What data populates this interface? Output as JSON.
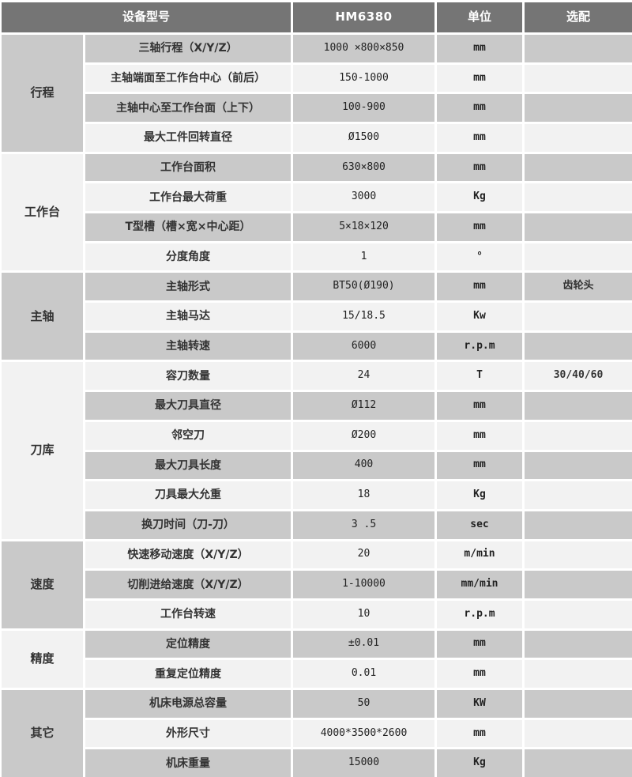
{
  "header": {
    "device_label": "设备型号",
    "model": "HM6380",
    "unit_label": "单位",
    "optional_label": "选配"
  },
  "colors": {
    "header_bg": "#757575",
    "header_text": "#ffffff",
    "row_gray": "#c9c9c9",
    "row_light": "#f2f2f2",
    "divider": "#ffffff",
    "text": "#333333"
  },
  "sections": [
    {
      "category": "行程",
      "rows": [
        {
          "param": "三轴行程（X/Y/Z）",
          "value": "1000 ×800×850",
          "unit": "mm",
          "optional": ""
        },
        {
          "param": "主轴端面至工作台中心（前后）",
          "value": "150-1000",
          "unit": "mm",
          "optional": ""
        },
        {
          "param": "主轴中心至工作台面（上下）",
          "value": "100-900",
          "unit": "mm",
          "optional": ""
        },
        {
          "param": "最大工件回转直径",
          "value": "Ø1500",
          "unit": "mm",
          "optional": ""
        }
      ]
    },
    {
      "category": "工作台",
      "rows": [
        {
          "param": "工作台面积",
          "value": "630×800",
          "unit": "mm",
          "optional": ""
        },
        {
          "param": "工作台最大荷重",
          "value": "3000",
          "unit": "Kg",
          "optional": ""
        },
        {
          "param": "T型槽（槽×宽×中心距）",
          "value": "5×18×120",
          "unit": "mm",
          "optional": ""
        },
        {
          "param": "分度角度",
          "value": "1",
          "unit": "°",
          "optional": ""
        }
      ]
    },
    {
      "category": "主轴",
      "rows": [
        {
          "param": "主轴形式",
          "value": "BT50(Ø190)",
          "unit": "mm",
          "optional": "齿轮头"
        },
        {
          "param": "主轴马达",
          "value": "15/18.5",
          "unit": "Kw",
          "optional": ""
        },
        {
          "param": "主轴转速",
          "value": "6000",
          "unit": "r.p.m",
          "optional": ""
        }
      ]
    },
    {
      "category": "刀库",
      "rows": [
        {
          "param": "容刀数量",
          "value": "24",
          "unit": "T",
          "optional": "30/40/60"
        },
        {
          "param": "最大刀具直径",
          "value": "Ø112",
          "unit": "mm",
          "optional": ""
        },
        {
          "param": "邻空刀",
          "value": "Ø200",
          "unit": "mm",
          "optional": ""
        },
        {
          "param": "最大刀具长度",
          "value": "400",
          "unit": "mm",
          "optional": ""
        },
        {
          "param": "刀具最大允重",
          "value": "18",
          "unit": "Kg",
          "optional": ""
        },
        {
          "param": "换刀时间（刀-刀）",
          "value": "3 .5",
          "unit": "sec",
          "optional": ""
        }
      ]
    },
    {
      "category": "速度",
      "rows": [
        {
          "param": "快速移动速度（X/Y/Z）",
          "value": "20",
          "unit": "m/min",
          "optional": ""
        },
        {
          "param": "切削进给速度（X/Y/Z）",
          "value": "1-10000",
          "unit": "mm/min",
          "optional": ""
        },
        {
          "param": "工作台转速",
          "value": "10",
          "unit": "r.p.m",
          "optional": ""
        }
      ]
    },
    {
      "category": "精度",
      "rows": [
        {
          "param": "定位精度",
          "value": "±0.01",
          "unit": "mm",
          "optional": ""
        },
        {
          "param": "重复定位精度",
          "value": "0.01",
          "unit": "mm",
          "optional": ""
        }
      ]
    },
    {
      "category": "其它",
      "rows": [
        {
          "param": "机床电源总容量",
          "value": "50",
          "unit": "KW",
          "optional": ""
        },
        {
          "param": "外形尺寸",
          "value": "4000*3500*2600",
          "unit": "mm",
          "optional": ""
        },
        {
          "param": "机床重量",
          "value": "15000",
          "unit": "Kg",
          "optional": ""
        }
      ]
    }
  ]
}
